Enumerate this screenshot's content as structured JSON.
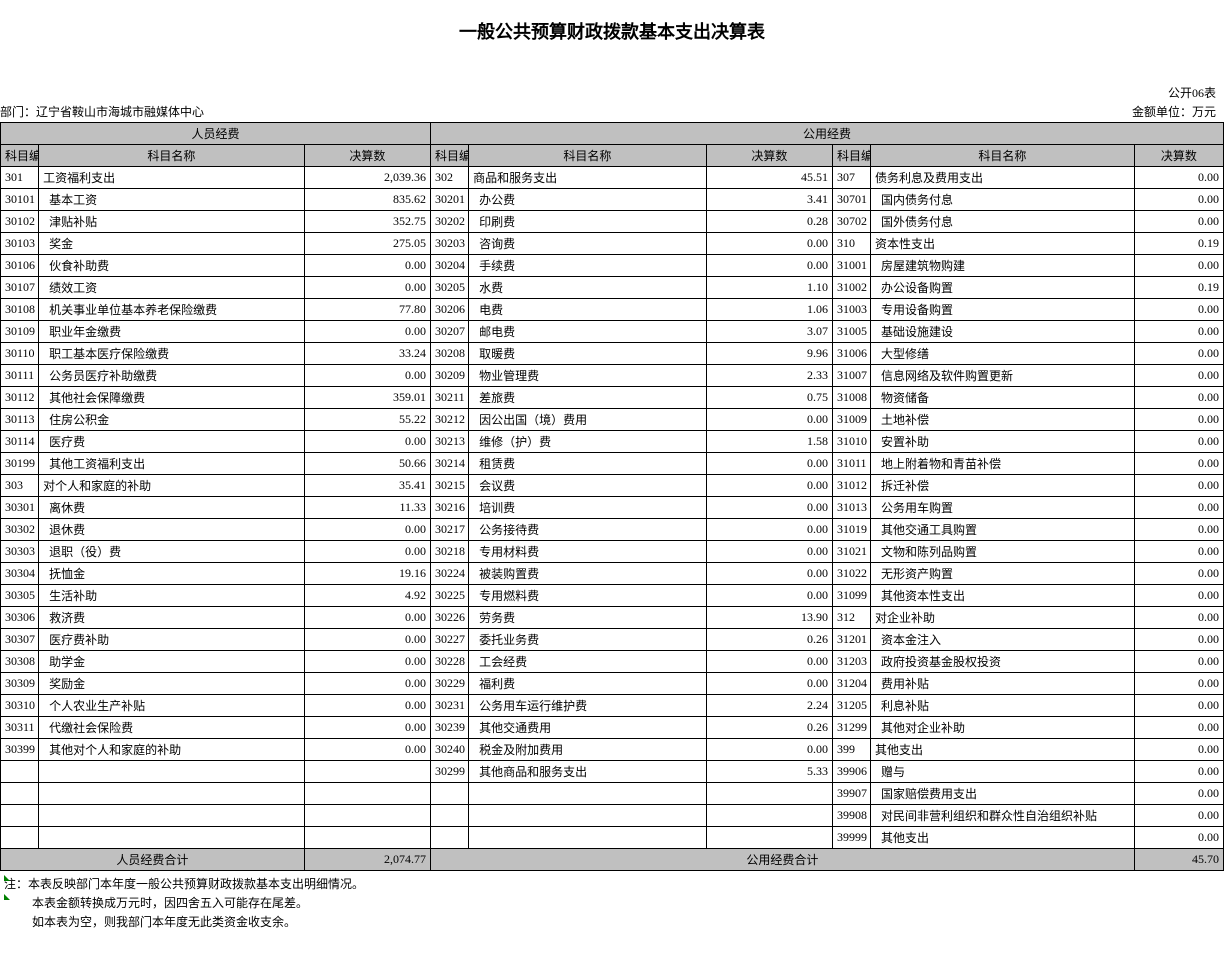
{
  "title": "一般公共预算财政拨款基本支出决算表",
  "top_right": "公开06表",
  "dept_label": "部门：辽宁省鞍山市海城市融媒体中心",
  "unit_label": "金额单位：万元",
  "group_headers": {
    "left": "人员经费",
    "right": "公用经费"
  },
  "col_headers": {
    "code": "科目编码",
    "name": "科目名称",
    "val": "决算数"
  },
  "totals": {
    "left_label": "人员经费合计",
    "left_val": "2,074.77",
    "right_label": "公用经费合计",
    "right_val": "45.70"
  },
  "notes": [
    "注：本表反映部门本年度一般公共预算财政拨款基本支出明细情况。",
    "本表金额转换成万元时，因四舍五入可能存在尾差。",
    "如本表为空，则我部门本年度无此类资金收支余。"
  ],
  "colwidths": {
    "code": 38,
    "name_l": 265,
    "val_l": 126,
    "code_m": 38,
    "name_m": 237,
    "val_m": 126,
    "code_r": 38,
    "name_r": 263,
    "val_r": 89
  },
  "rows": [
    {
      "c1": "301",
      "n1": "工资福利支出",
      "t1": true,
      "v1": "2,039.36",
      "c2": "302",
      "n2": "商品和服务支出",
      "t2": true,
      "v2": "45.51",
      "c3": "307",
      "n3": "债务利息及费用支出",
      "t3": true,
      "v3": "0.00"
    },
    {
      "c1": "30101",
      "n1": "基本工资",
      "v1": "835.62",
      "c2": "30201",
      "n2": "办公费",
      "v2": "3.41",
      "c3": "30701",
      "n3": "国内债务付息",
      "v3": "0.00"
    },
    {
      "c1": "30102",
      "n1": "津贴补贴",
      "v1": "352.75",
      "c2": "30202",
      "n2": "印刷费",
      "v2": "0.28",
      "c3": "30702",
      "n3": "国外债务付息",
      "v3": "0.00"
    },
    {
      "c1": "30103",
      "n1": "奖金",
      "v1": "275.05",
      "c2": "30203",
      "n2": "咨询费",
      "v2": "0.00",
      "c3": "310",
      "n3": "资本性支出",
      "t3": true,
      "v3": "0.19"
    },
    {
      "c1": "30106",
      "n1": "伙食补助费",
      "v1": "0.00",
      "c2": "30204",
      "n2": "手续费",
      "v2": "0.00",
      "c3": "31001",
      "n3": "房屋建筑物购建",
      "v3": "0.00"
    },
    {
      "c1": "30107",
      "n1": "绩效工资",
      "v1": "0.00",
      "c2": "30205",
      "n2": "水费",
      "v2": "1.10",
      "c3": "31002",
      "n3": "办公设备购置",
      "v3": "0.19"
    },
    {
      "c1": "30108",
      "n1": "机关事业单位基本养老保险缴费",
      "v1": "77.80",
      "c2": "30206",
      "n2": "电费",
      "v2": "1.06",
      "c3": "31003",
      "n3": "专用设备购置",
      "v3": "0.00"
    },
    {
      "c1": "30109",
      "n1": "职业年金缴费",
      "v1": "0.00",
      "c2": "30207",
      "n2": "邮电费",
      "v2": "3.07",
      "c3": "31005",
      "n3": "基础设施建设",
      "v3": "0.00"
    },
    {
      "c1": "30110",
      "n1": "职工基本医疗保险缴费",
      "v1": "33.24",
      "c2": "30208",
      "n2": "取暖费",
      "v2": "9.96",
      "c3": "31006",
      "n3": "大型修缮",
      "v3": "0.00"
    },
    {
      "c1": "30111",
      "n1": "公务员医疗补助缴费",
      "v1": "0.00",
      "c2": "30209",
      "n2": "物业管理费",
      "v2": "2.33",
      "c3": "31007",
      "n3": "信息网络及软件购置更新",
      "v3": "0.00"
    },
    {
      "c1": "30112",
      "n1": "其他社会保障缴费",
      "v1": "359.01",
      "c2": "30211",
      "n2": "差旅费",
      "v2": "0.75",
      "c3": "31008",
      "n3": "物资储备",
      "v3": "0.00"
    },
    {
      "c1": "30113",
      "n1": "住房公积金",
      "v1": "55.22",
      "c2": "30212",
      "n2": "因公出国（境）费用",
      "v2": "0.00",
      "c3": "31009",
      "n3": "土地补偿",
      "v3": "0.00"
    },
    {
      "c1": "30114",
      "n1": "医疗费",
      "v1": "0.00",
      "c2": "30213",
      "n2": "维修（护）费",
      "v2": "1.58",
      "c3": "31010",
      "n3": "安置补助",
      "v3": "0.00"
    },
    {
      "c1": "30199",
      "n1": "其他工资福利支出",
      "v1": "50.66",
      "c2": "30214",
      "n2": "租赁费",
      "v2": "0.00",
      "c3": "31011",
      "n3": "地上附着物和青苗补偿",
      "v3": "0.00"
    },
    {
      "c1": "303",
      "n1": "对个人和家庭的补助",
      "t1": true,
      "v1": "35.41",
      "c2": "30215",
      "n2": "会议费",
      "v2": "0.00",
      "c3": "31012",
      "n3": "拆迁补偿",
      "v3": "0.00"
    },
    {
      "c1": "30301",
      "n1": "离休费",
      "v1": "11.33",
      "c2": "30216",
      "n2": "培训费",
      "v2": "0.00",
      "c3": "31013",
      "n3": "公务用车购置",
      "v3": "0.00"
    },
    {
      "c1": "30302",
      "n1": "退休费",
      "v1": "0.00",
      "c2": "30217",
      "n2": "公务接待费",
      "v2": "0.00",
      "c3": "31019",
      "n3": "其他交通工具购置",
      "v3": "0.00"
    },
    {
      "c1": "30303",
      "n1": "退职（役）费",
      "v1": "0.00",
      "c2": "30218",
      "n2": "专用材料费",
      "v2": "0.00",
      "c3": "31021",
      "n3": "文物和陈列品购置",
      "v3": "0.00"
    },
    {
      "c1": "30304",
      "n1": "抚恤金",
      "v1": "19.16",
      "c2": "30224",
      "n2": "被装购置费",
      "v2": "0.00",
      "c3": "31022",
      "n3": "无形资产购置",
      "v3": "0.00"
    },
    {
      "c1": "30305",
      "n1": "生活补助",
      "v1": "4.92",
      "c2": "30225",
      "n2": "专用燃料费",
      "v2": "0.00",
      "c3": "31099",
      "n3": "其他资本性支出",
      "v3": "0.00"
    },
    {
      "c1": "30306",
      "n1": "救济费",
      "v1": "0.00",
      "c2": "30226",
      "n2": "劳务费",
      "v2": "13.90",
      "c3": "312",
      "n3": "对企业补助",
      "t3": true,
      "v3": "0.00"
    },
    {
      "c1": "30307",
      "n1": "医疗费补助",
      "v1": "0.00",
      "c2": "30227",
      "n2": "委托业务费",
      "v2": "0.26",
      "c3": "31201",
      "n3": "资本金注入",
      "v3": "0.00"
    },
    {
      "c1": "30308",
      "n1": "助学金",
      "v1": "0.00",
      "c2": "30228",
      "n2": "工会经费",
      "v2": "0.00",
      "c3": "31203",
      "n3": "政府投资基金股权投资",
      "v3": "0.00"
    },
    {
      "c1": "30309",
      "n1": "奖励金",
      "v1": "0.00",
      "c2": "30229",
      "n2": "福利费",
      "v2": "0.00",
      "c3": "31204",
      "n3": "费用补贴",
      "v3": "0.00"
    },
    {
      "c1": "30310",
      "n1": "个人农业生产补贴",
      "v1": "0.00",
      "c2": "30231",
      "n2": "公务用车运行维护费",
      "v2": "2.24",
      "c3": "31205",
      "n3": "利息补贴",
      "v3": "0.00"
    },
    {
      "c1": "30311",
      "n1": "代缴社会保险费",
      "v1": "0.00",
      "c2": "30239",
      "n2": "其他交通费用",
      "v2": "0.26",
      "c3": "31299",
      "n3": "其他对企业补助",
      "v3": "0.00"
    },
    {
      "c1": "30399",
      "n1": "其他对个人和家庭的补助",
      "v1": "0.00",
      "c2": "30240",
      "n2": "税金及附加费用",
      "v2": "0.00",
      "c3": "399",
      "n3": "其他支出",
      "t3": true,
      "v3": "0.00"
    },
    {
      "c1": "",
      "n1": "",
      "v1": "",
      "c2": "30299",
      "n2": "其他商品和服务支出",
      "v2": "5.33",
      "c3": "39906",
      "n3": "赠与",
      "v3": "0.00"
    },
    {
      "c1": "",
      "n1": "",
      "v1": "",
      "c2": "",
      "n2": "",
      "v2": "",
      "c3": "39907",
      "n3": "国家赔偿费用支出",
      "v3": "0.00"
    },
    {
      "c1": "",
      "n1": "",
      "v1": "",
      "c2": "",
      "n2": "",
      "v2": "",
      "c3": "39908",
      "n3": "对民间非营利组织和群众性自治组织补贴",
      "v3": "0.00"
    },
    {
      "c1": "",
      "n1": "",
      "v1": "",
      "c2": "",
      "n2": "",
      "v2": "",
      "c3": "39999",
      "n3": "其他支出",
      "v3": "0.00"
    }
  ]
}
